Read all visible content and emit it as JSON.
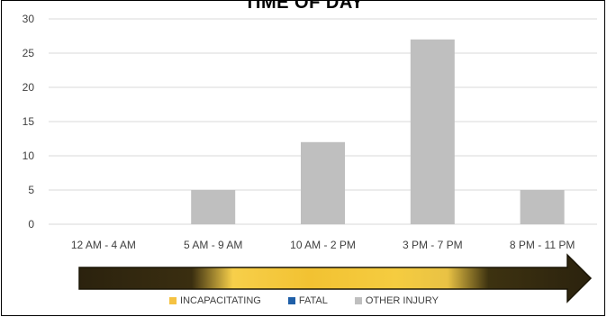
{
  "chart_data": {
    "type": "bar",
    "title": "TIME OF DAY",
    "categories": [
      "12 AM - 4 AM",
      "5 AM - 9 AM",
      "10 AM - 2 PM",
      "3 PM - 7 PM",
      "8 PM - 11 PM"
    ],
    "series": [
      {
        "name": "INCAPACITATING",
        "color": "#f5c242",
        "values": [
          0,
          0,
          0,
          0,
          0
        ]
      },
      {
        "name": "FATAL",
        "color": "#1f5fa8",
        "values": [
          0,
          0,
          0,
          0,
          0
        ]
      },
      {
        "name": "OTHER INJURY",
        "color": "#bfbfbf",
        "values": [
          0,
          5,
          12,
          27,
          5
        ]
      }
    ],
    "ylim": [
      0,
      30
    ],
    "yticks": [
      0,
      5,
      10,
      15,
      20,
      25,
      30
    ],
    "grid": true,
    "legend_position": "bottom"
  }
}
